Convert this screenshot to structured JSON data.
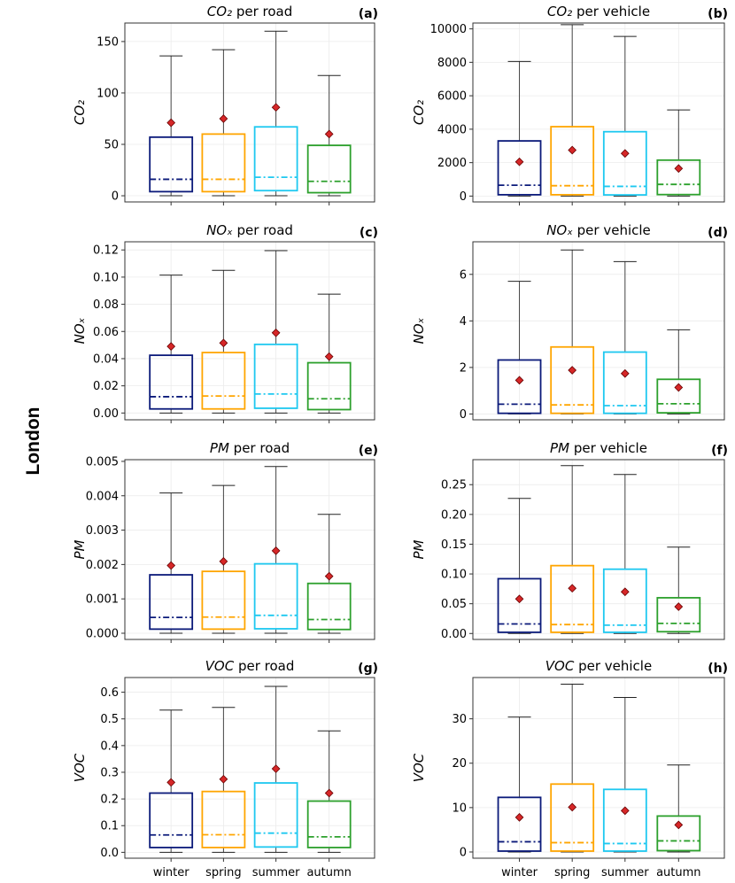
{
  "city_label": "London",
  "season_colors": {
    "winter": "#0b1a7a",
    "spring": "#ffa500",
    "summer": "#1ec8f0",
    "autumn": "#2ca02c"
  },
  "mean_marker_color": "#d62728",
  "chart_data": [
    {
      "id": "a",
      "type": "box",
      "panel_label": "(a)",
      "title": "CO₂ per road",
      "title_italic": "CO₂",
      "title_rest": " per road",
      "ylabel": "CO₂",
      "categories": [
        "winter",
        "spring",
        "summer",
        "autumn"
      ],
      "ylim": [
        -6,
        168
      ],
      "yticks": [
        0,
        50,
        100,
        150
      ],
      "ytick_labels": [
        "0",
        "50",
        "100",
        "150"
      ],
      "boxes": [
        {
          "whislo": 0,
          "q1": 4,
          "med": 16,
          "q3": 57,
          "whishi": 136,
          "mean": 71
        },
        {
          "whislo": 0,
          "q1": 4,
          "med": 16,
          "q3": 60,
          "whishi": 142,
          "mean": 75
        },
        {
          "whislo": 0,
          "q1": 5,
          "med": 18,
          "q3": 67,
          "whishi": 160,
          "mean": 86
        },
        {
          "whislo": 0,
          "q1": 3,
          "med": 14,
          "q3": 49,
          "whishi": 117,
          "mean": 60
        }
      ]
    },
    {
      "id": "b",
      "type": "box",
      "panel_label": "(b)",
      "title": "CO₂ per vehicle",
      "title_italic": "CO₂",
      "title_rest": " per vehicle",
      "ylabel": "CO₂",
      "categories": [
        "winter",
        "spring",
        "summer",
        "autumn"
      ],
      "ylim": [
        -350,
        10350
      ],
      "yticks": [
        0,
        2000,
        4000,
        6000,
        8000,
        10000
      ],
      "ytick_labels": [
        "0",
        "2000",
        "4000",
        "6000",
        "8000",
        "10000"
      ],
      "boxes": [
        {
          "whislo": 0,
          "q1": 80,
          "med": 650,
          "q3": 3300,
          "whishi": 8050,
          "mean": 2050
        },
        {
          "whislo": 0,
          "q1": 80,
          "med": 620,
          "q3": 4150,
          "whishi": 10250,
          "mean": 2750
        },
        {
          "whislo": 0,
          "q1": 70,
          "med": 580,
          "q3": 3850,
          "whishi": 9550,
          "mean": 2550
        },
        {
          "whislo": 0,
          "q1": 90,
          "med": 700,
          "q3": 2150,
          "whishi": 5150,
          "mean": 1650
        }
      ]
    },
    {
      "id": "c",
      "type": "box",
      "panel_label": "(c)",
      "title": "NOₓ per road",
      "title_italic": "NOₓ",
      "title_rest": " per road",
      "ylabel": "NOₓ",
      "categories": [
        "winter",
        "spring",
        "summer",
        "autumn"
      ],
      "ylim": [
        -0.005,
        0.126
      ],
      "yticks": [
        0,
        0.02,
        0.04,
        0.06,
        0.08,
        0.1,
        0.12
      ],
      "ytick_labels": [
        "0.00",
        "0.02",
        "0.04",
        "0.06",
        "0.08",
        "0.10",
        "0.12"
      ],
      "boxes": [
        {
          "whislo": 0,
          "q1": 0.003,
          "med": 0.012,
          "q3": 0.0425,
          "whishi": 0.1015,
          "mean": 0.049
        },
        {
          "whislo": 0,
          "q1": 0.003,
          "med": 0.0125,
          "q3": 0.0445,
          "whishi": 0.105,
          "mean": 0.0515
        },
        {
          "whislo": 0,
          "q1": 0.0035,
          "med": 0.014,
          "q3": 0.0505,
          "whishi": 0.1195,
          "mean": 0.059
        },
        {
          "whislo": 0,
          "q1": 0.0025,
          "med": 0.0105,
          "q3": 0.037,
          "whishi": 0.0875,
          "mean": 0.0415
        }
      ]
    },
    {
      "id": "d",
      "type": "box",
      "panel_label": "(d)",
      "title": "NOₓ per vehicle",
      "title_italic": "NOₓ",
      "title_rest": " per vehicle",
      "ylabel": "NOₓ",
      "categories": [
        "winter",
        "spring",
        "summer",
        "autumn"
      ],
      "ylim": [
        -0.25,
        7.4
      ],
      "yticks": [
        0,
        2,
        4,
        6
      ],
      "ytick_labels": [
        "0",
        "2",
        "4",
        "6"
      ],
      "boxes": [
        {
          "whislo": 0,
          "q1": 0.03,
          "med": 0.42,
          "q3": 2.32,
          "whishi": 5.7,
          "mean": 1.45
        },
        {
          "whislo": 0,
          "q1": 0.03,
          "med": 0.39,
          "q3": 2.88,
          "whishi": 7.05,
          "mean": 1.88
        },
        {
          "whislo": 0,
          "q1": 0.03,
          "med": 0.36,
          "q3": 2.66,
          "whishi": 6.55,
          "mean": 1.74
        },
        {
          "whislo": 0,
          "q1": 0.05,
          "med": 0.44,
          "q3": 1.49,
          "whishi": 3.62,
          "mean": 1.14
        }
      ]
    },
    {
      "id": "e",
      "type": "box",
      "panel_label": "(e)",
      "title": "PM per road",
      "title_italic": "PM",
      "title_rest": " per road",
      "ylabel": "PM",
      "categories": [
        "winter",
        "spring",
        "summer",
        "autumn"
      ],
      "ylim": [
        -0.00018,
        0.00505
      ],
      "yticks": [
        0,
        0.001,
        0.002,
        0.003,
        0.004,
        0.005
      ],
      "ytick_labels": [
        "0.000",
        "0.001",
        "0.002",
        "0.003",
        "0.004",
        "0.005"
      ],
      "boxes": [
        {
          "whislo": 0,
          "q1": 0.00012,
          "med": 0.00046,
          "q3": 0.0017,
          "whishi": 0.00408,
          "mean": 0.00197
        },
        {
          "whislo": 0,
          "q1": 0.00012,
          "med": 0.00047,
          "q3": 0.0018,
          "whishi": 0.0043,
          "mean": 0.00209
        },
        {
          "whislo": 0,
          "q1": 0.00013,
          "med": 0.00052,
          "q3": 0.00202,
          "whishi": 0.00485,
          "mean": 0.0024
        },
        {
          "whislo": 0,
          "q1": 0.00011,
          "med": 0.0004,
          "q3": 0.00145,
          "whishi": 0.00346,
          "mean": 0.00166
        }
      ]
    },
    {
      "id": "f",
      "type": "box",
      "panel_label": "(f)",
      "title": "PM per vehicle",
      "title_italic": "PM",
      "title_rest": " per vehicle",
      "ylabel": "PM",
      "categories": [
        "winter",
        "spring",
        "summer",
        "autumn"
      ],
      "ylim": [
        -0.01,
        0.292
      ],
      "yticks": [
        0,
        0.05,
        0.1,
        0.15,
        0.2,
        0.25
      ],
      "ytick_labels": [
        "0.00",
        "0.05",
        "0.10",
        "0.15",
        "0.20",
        "0.25"
      ],
      "boxes": [
        {
          "whislo": 0,
          "q1": 0.002,
          "med": 0.016,
          "q3": 0.092,
          "whishi": 0.227,
          "mean": 0.058
        },
        {
          "whislo": 0,
          "q1": 0.002,
          "med": 0.015,
          "q3": 0.114,
          "whishi": 0.282,
          "mean": 0.076
        },
        {
          "whislo": 0,
          "q1": 0.002,
          "med": 0.014,
          "q3": 0.108,
          "whishi": 0.267,
          "mean": 0.07
        },
        {
          "whislo": 0,
          "q1": 0.003,
          "med": 0.017,
          "q3": 0.06,
          "whishi": 0.145,
          "mean": 0.045
        }
      ]
    },
    {
      "id": "g",
      "type": "box",
      "panel_label": "(g)",
      "title": "VOC per road",
      "title_italic": "VOC",
      "title_rest": " per road",
      "ylabel": "VOC",
      "categories": [
        "winter",
        "spring",
        "summer",
        "autumn"
      ],
      "ylim": [
        -0.022,
        0.655
      ],
      "yticks": [
        0,
        0.1,
        0.2,
        0.3,
        0.4,
        0.5,
        0.6
      ],
      "ytick_labels": [
        "0.0",
        "0.1",
        "0.2",
        "0.3",
        "0.4",
        "0.5",
        "0.6"
      ],
      "boxes": [
        {
          "whislo": 0,
          "q1": 0.018,
          "med": 0.065,
          "q3": 0.222,
          "whishi": 0.533,
          "mean": 0.262
        },
        {
          "whislo": 0,
          "q1": 0.018,
          "med": 0.066,
          "q3": 0.228,
          "whishi": 0.543,
          "mean": 0.274
        },
        {
          "whislo": 0,
          "q1": 0.02,
          "med": 0.072,
          "q3": 0.26,
          "whishi": 0.622,
          "mean": 0.313
        },
        {
          "whislo": 0,
          "q1": 0.018,
          "med": 0.058,
          "q3": 0.192,
          "whishi": 0.455,
          "mean": 0.222
        }
      ]
    },
    {
      "id": "h",
      "type": "box",
      "panel_label": "(h)",
      "title": "VOC per vehicle",
      "title_italic": "VOC",
      "title_rest": " per vehicle",
      "ylabel": "VOC",
      "categories": [
        "winter",
        "spring",
        "summer",
        "autumn"
      ],
      "ylim": [
        -1.4,
        39.3
      ],
      "yticks": [
        0,
        10,
        20,
        30
      ],
      "ytick_labels": [
        "0",
        "10",
        "20",
        "30"
      ],
      "boxes": [
        {
          "whislo": 0,
          "q1": 0.2,
          "med": 2.3,
          "q3": 12.3,
          "whishi": 30.4,
          "mean": 7.8
        },
        {
          "whislo": 0,
          "q1": 0.2,
          "med": 2.1,
          "q3": 15.3,
          "whishi": 37.8,
          "mean": 10.1
        },
        {
          "whislo": 0,
          "q1": 0.2,
          "med": 1.9,
          "q3": 14.1,
          "whishi": 34.8,
          "mean": 9.3
        },
        {
          "whislo": 0,
          "q1": 0.3,
          "med": 2.5,
          "q3": 8.1,
          "whishi": 19.6,
          "mean": 6.1
        }
      ]
    }
  ]
}
